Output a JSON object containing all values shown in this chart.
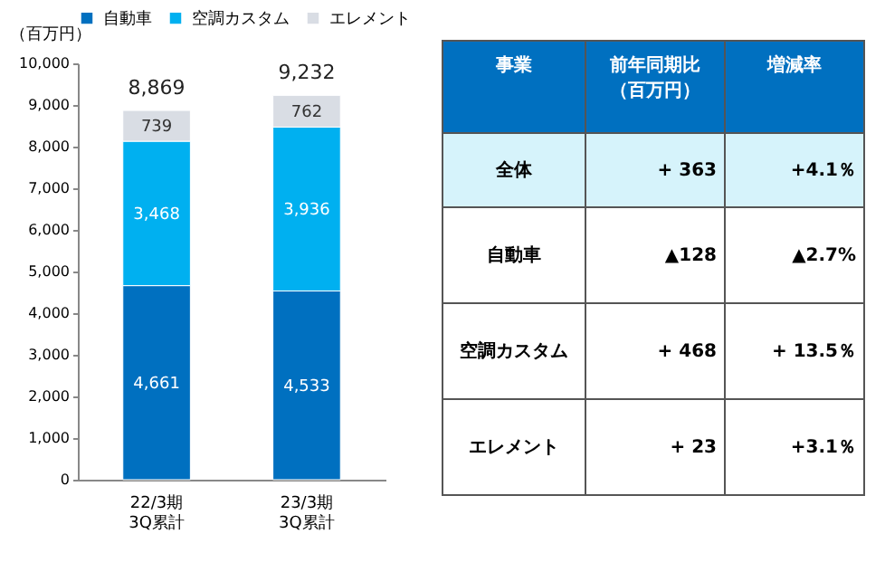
{
  "chart_data": [
    {
      "type": "bar",
      "stacked": true,
      "ylabel": "（百万円）",
      "categories": [
        "22/3期\n3Q累計",
        "23/3期\n3Q累計"
      ],
      "series": [
        {
          "name": "自動車",
          "color": "#0070c0",
          "values": [
            4661,
            4533
          ],
          "value_labels": [
            "4,661",
            "4,533"
          ]
        },
        {
          "name": "空調カスタム",
          "color": "#00b0f0",
          "values": [
            3468,
            3936
          ],
          "value_labels": [
            "3,468",
            "3,936"
          ]
        },
        {
          "name": "エレメント",
          "color": "#d9dde4",
          "values": [
            739,
            762
          ],
          "value_labels": [
            "739",
            "762"
          ]
        }
      ],
      "ylim": [
        0,
        10000
      ],
      "yticks": [
        0,
        {
          "value": 1000,
          "label": "1,000"
        },
        {
          "value": 2000,
          "label": "2,000"
        },
        {
          "value": 3000,
          "label": "3,000"
        },
        {
          "value": 4000,
          "label": "4,000"
        },
        {
          "value": 5000,
          "label": "5,000"
        },
        {
          "value": 6000,
          "label": "6,000"
        },
        {
          "value": 7000,
          "label": "7,000"
        },
        {
          "value": 8000,
          "label": "8,000"
        },
        {
          "value": 9000,
          "label": "9,000"
        },
        {
          "value": 10000,
          "label": "10,000"
        }
      ],
      "totals": [
        "8,869",
        "9,232"
      ],
      "legend": "top"
    },
    {
      "type": "other",
      "annotations": [
        "事業",
        "前年同期比（百万円）",
        "増減率",
        "全体",
        "+ 363",
        "+4.1％",
        "自動車",
        "▲128",
        "▲2.7%",
        "空調カスタム",
        "+ 468",
        "+ 13.5％",
        "エレメント",
        "+ 23",
        "+3.1％"
      ]
    }
  ]
}
